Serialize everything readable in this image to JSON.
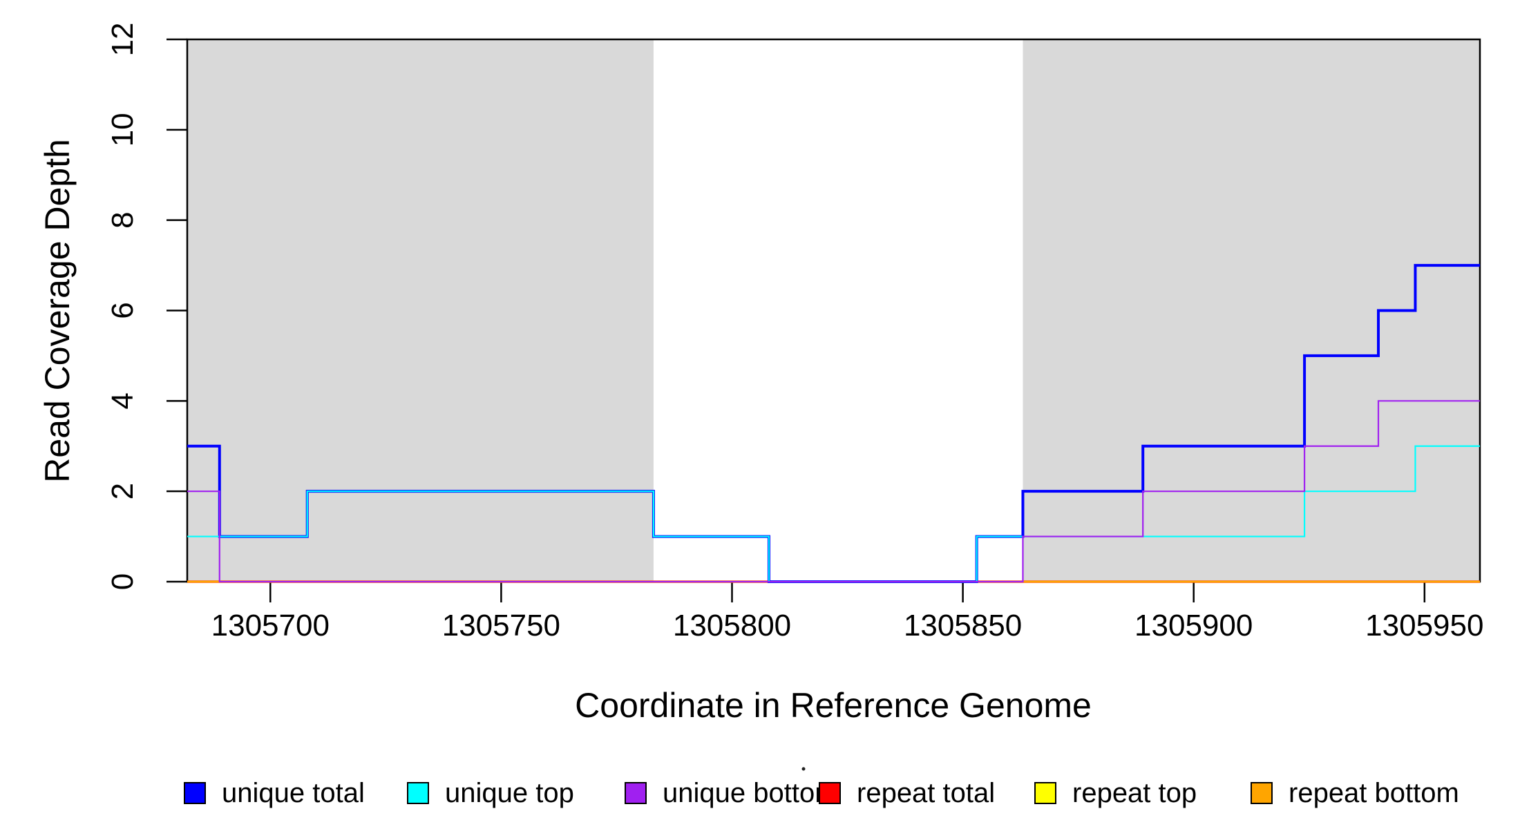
{
  "chart_data": {
    "type": "line",
    "step": "after",
    "title": "",
    "xlabel": "Coordinate in Reference Genome",
    "ylabel": "Read Coverage Depth",
    "xlim": [
      1305682,
      1305962
    ],
    "ylim": [
      0,
      12
    ],
    "x_ticks": [
      1305700,
      1305750,
      1305800,
      1305850,
      1305900,
      1305950
    ],
    "y_ticks": [
      0,
      2,
      4,
      6,
      8,
      10,
      12
    ],
    "grid": false,
    "shaded_color": "#d9d9d9",
    "shaded_regions": [
      {
        "x0": 1305682,
        "x1": 1305783
      },
      {
        "x0": 1305863,
        "x1": 1305962
      }
    ],
    "draw_order": [
      "repeat total",
      "repeat top",
      "repeat bottom",
      "unique total",
      "unique top",
      "unique bottom"
    ],
    "series": [
      {
        "name": "unique total",
        "color": "#0000ff",
        "lwd": 4,
        "points": [
          [
            1305682,
            3
          ],
          [
            1305689,
            1
          ],
          [
            1305708,
            2
          ],
          [
            1305783,
            1
          ],
          [
            1305808,
            0
          ],
          [
            1305853,
            1
          ],
          [
            1305863,
            2
          ],
          [
            1305889,
            3
          ],
          [
            1305924,
            5
          ],
          [
            1305940,
            6
          ],
          [
            1305948,
            7
          ]
        ]
      },
      {
        "name": "unique top",
        "color": "#00ffff",
        "lwd": 2.2,
        "points": [
          [
            1305682,
            1
          ],
          [
            1305708,
            2
          ],
          [
            1305783,
            1
          ],
          [
            1305808,
            0
          ],
          [
            1305853,
            1
          ],
          [
            1305924,
            2
          ],
          [
            1305948,
            3
          ]
        ]
      },
      {
        "name": "unique bottom",
        "color": "#a020f0",
        "lwd": 2.2,
        "points": [
          [
            1305682,
            2
          ],
          [
            1305689,
            0
          ],
          [
            1305863,
            1
          ],
          [
            1305889,
            2
          ],
          [
            1305924,
            3
          ],
          [
            1305940,
            4
          ]
        ]
      },
      {
        "name": "repeat total",
        "color": "#ff0000",
        "lwd": 3.6,
        "points": [
          [
            1305682,
            0
          ]
        ]
      },
      {
        "name": "repeat top",
        "color": "#ffff00",
        "lwd": 2.6,
        "points": [
          [
            1305682,
            0
          ]
        ]
      },
      {
        "name": "repeat bottom",
        "color": "#ffa500",
        "lwd": 2.6,
        "points": [
          [
            1305682,
            0
          ]
        ]
      }
    ],
    "legend": {
      "position": "bottom",
      "entries": [
        {
          "label": "unique total",
          "color": "#0000ff"
        },
        {
          "label": "unique top",
          "color": "#00ffff"
        },
        {
          "label": "unique bottom",
          "color": "#a020f0"
        },
        {
          "label": "repeat total",
          "color": "#ff0000"
        },
        {
          "label": "repeat top",
          "color": "#ffff00"
        },
        {
          "label": "repeat bottom",
          "color": "#ffa500"
        }
      ]
    }
  }
}
